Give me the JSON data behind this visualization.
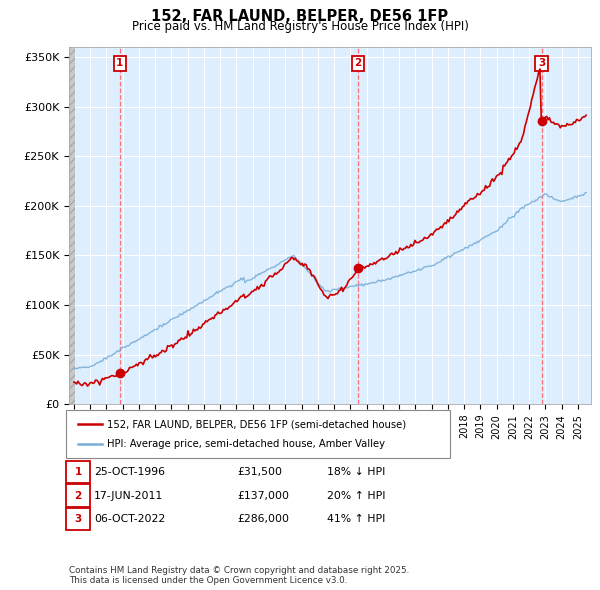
{
  "title": "152, FAR LAUND, BELPER, DE56 1FP",
  "subtitle": "Price paid vs. HM Land Registry's House Price Index (HPI)",
  "ylabel_ticks": [
    "£0",
    "£50K",
    "£100K",
    "£150K",
    "£200K",
    "£250K",
    "£300K",
    "£350K"
  ],
  "ytick_values": [
    0,
    50000,
    100000,
    150000,
    200000,
    250000,
    300000,
    350000
  ],
  "ylim": [
    0,
    360000
  ],
  "xlim_start": 1993.7,
  "xlim_end": 2025.8,
  "sale_markers": [
    {
      "num": 1,
      "date": "25-OCT-1996",
      "price": 31500,
      "x": 1996.82,
      "pct": "18%",
      "dir": "↓"
    },
    {
      "num": 2,
      "date": "17-JUN-2011",
      "price": 137000,
      "x": 2011.46,
      "pct": "20%",
      "dir": "↑"
    },
    {
      "num": 3,
      "date": "06-OCT-2022",
      "price": 286000,
      "x": 2022.77,
      "pct": "41%",
      "dir": "↑"
    }
  ],
  "legend_entries": [
    "152, FAR LAUND, BELPER, DE56 1FP (semi-detached house)",
    "HPI: Average price, semi-detached house, Amber Valley"
  ],
  "footer": "Contains HM Land Registry data © Crown copyright and database right 2025.\nThis data is licensed under the Open Government Licence v3.0.",
  "hpi_color": "#7aaed6",
  "sale_line_color": "#cc0000",
  "sale_marker_color": "#cc0000",
  "vline_color": "#ff6666",
  "grid_color": "#c8d8e8",
  "chart_bg": "#ddeeff",
  "background_color": "#ffffff",
  "hatch_color": "#c0c0c0"
}
